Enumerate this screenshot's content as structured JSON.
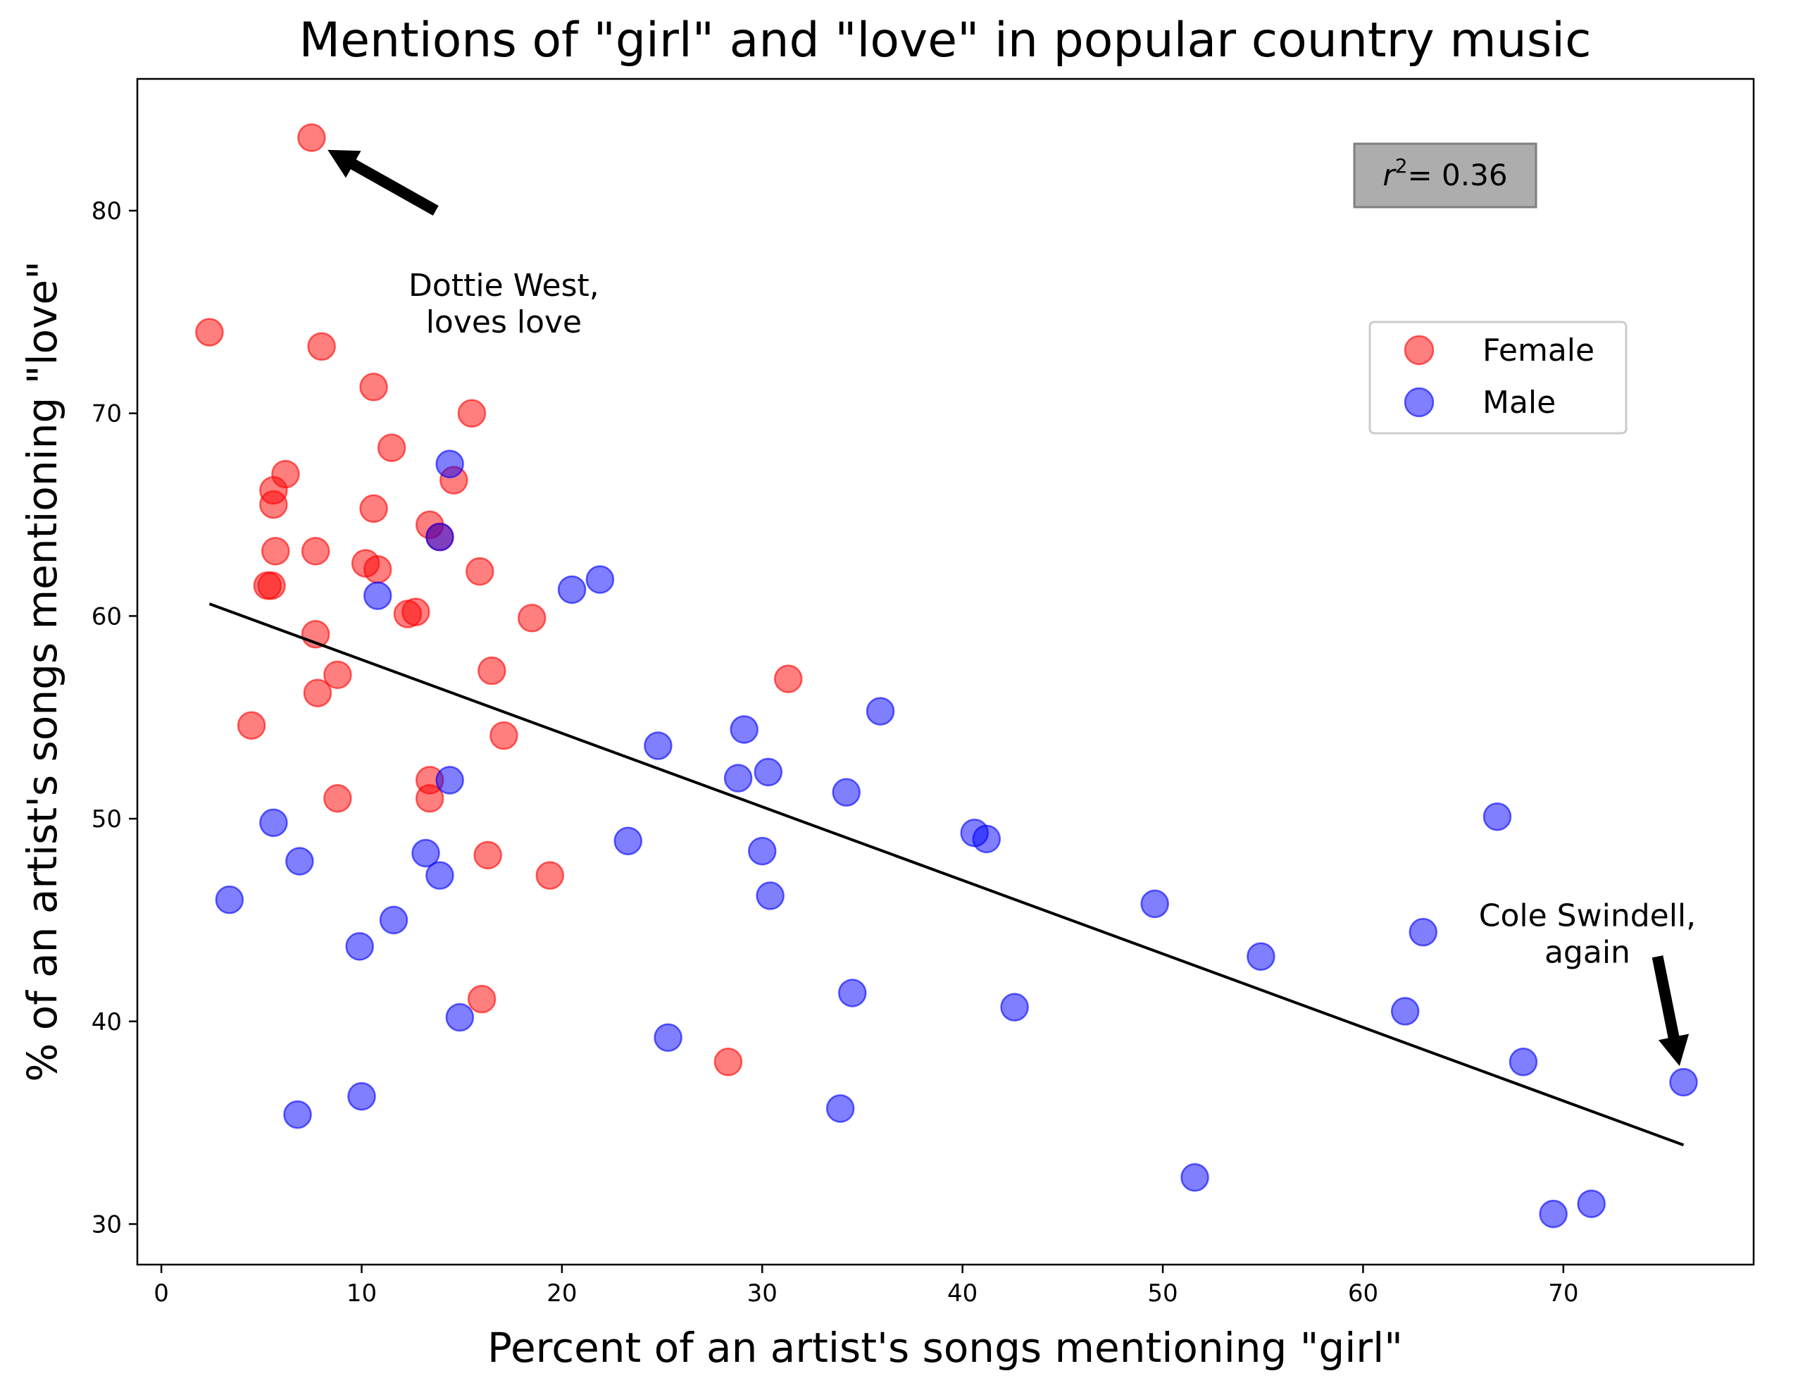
{
  "chart_data": {
    "type": "scatter",
    "title": "Mentions of \"girl\" and \"love\" in popular country music",
    "xlabel": "Percent of an artist's songs mentioning \"girl\"",
    "ylabel": "% of an artist's songs mentioning \"love\"",
    "xlim": [
      -1.2,
      79.5
    ],
    "ylim": [
      28,
      86.5
    ],
    "xticks": [
      0,
      10,
      20,
      30,
      40,
      50,
      60,
      70
    ],
    "yticks": [
      30,
      40,
      50,
      60,
      70,
      80
    ],
    "grid": false,
    "legend_position": "upper right",
    "series": [
      {
        "name": "Female",
        "color": "#ff0000",
        "points": [
          [
            7.5,
            83.6
          ],
          [
            2.4,
            74.0
          ],
          [
            8.0,
            73.3
          ],
          [
            10.6,
            71.3
          ],
          [
            15.5,
            70.0
          ],
          [
            11.5,
            68.3
          ],
          [
            14.6,
            66.7
          ],
          [
            6.2,
            67.0
          ],
          [
            5.6,
            66.2
          ],
          [
            5.6,
            65.5
          ],
          [
            10.6,
            65.3
          ],
          [
            13.4,
            64.5
          ],
          [
            13.9,
            63.9
          ],
          [
            5.7,
            63.2
          ],
          [
            7.7,
            63.2
          ],
          [
            10.2,
            62.6
          ],
          [
            10.8,
            62.3
          ],
          [
            15.9,
            62.2
          ],
          [
            5.3,
            61.5
          ],
          [
            5.5,
            61.5
          ],
          [
            12.7,
            60.2
          ],
          [
            12.3,
            60.1
          ],
          [
            18.5,
            59.9
          ],
          [
            7.7,
            59.1
          ],
          [
            8.8,
            57.1
          ],
          [
            16.5,
            57.3
          ],
          [
            31.3,
            56.9
          ],
          [
            7.8,
            56.2
          ],
          [
            4.5,
            54.6
          ],
          [
            17.1,
            54.1
          ],
          [
            13.4,
            51.9
          ],
          [
            13.4,
            51.0
          ],
          [
            8.8,
            51.0
          ],
          [
            16.3,
            48.2
          ],
          [
            19.4,
            47.2
          ],
          [
            16.0,
            41.1
          ],
          [
            28.3,
            38.0
          ]
        ]
      },
      {
        "name": "Male",
        "color": "#0000ff",
        "points": [
          [
            14.4,
            67.5
          ],
          [
            13.9,
            63.9
          ],
          [
            21.9,
            61.8
          ],
          [
            20.5,
            61.3
          ],
          [
            10.8,
            61.0
          ],
          [
            35.9,
            55.3
          ],
          [
            29.1,
            54.4
          ],
          [
            24.8,
            53.6
          ],
          [
            30.3,
            52.3
          ],
          [
            28.8,
            52.0
          ],
          [
            14.4,
            51.9
          ],
          [
            34.2,
            51.3
          ],
          [
            5.6,
            49.8
          ],
          [
            66.7,
            50.1
          ],
          [
            40.6,
            49.3
          ],
          [
            41.2,
            49.0
          ],
          [
            23.3,
            48.9
          ],
          [
            30.0,
            48.4
          ],
          [
            13.2,
            48.3
          ],
          [
            6.9,
            47.9
          ],
          [
            13.9,
            47.2
          ],
          [
            30.4,
            46.2
          ],
          [
            3.4,
            46.0
          ],
          [
            49.6,
            45.8
          ],
          [
            11.6,
            45.0
          ],
          [
            63.0,
            44.4
          ],
          [
            9.9,
            43.7
          ],
          [
            54.9,
            43.2
          ],
          [
            34.5,
            41.4
          ],
          [
            42.6,
            40.7
          ],
          [
            62.1,
            40.5
          ],
          [
            14.9,
            40.2
          ],
          [
            25.3,
            39.2
          ],
          [
            68.0,
            38.0
          ],
          [
            76.0,
            37.0
          ],
          [
            10.0,
            36.3
          ],
          [
            33.9,
            35.7
          ],
          [
            6.8,
            35.4
          ],
          [
            51.6,
            32.3
          ],
          [
            71.4,
            31.0
          ],
          [
            69.5,
            30.5
          ]
        ]
      }
    ],
    "trendline": {
      "x": [
        2.4,
        76.0
      ],
      "y": [
        60.6,
        33.9
      ],
      "color": "#000000"
    },
    "r2_label": "= 0.36",
    "annotations": [
      {
        "text": [
          "Dottie West,",
          "loves love"
        ],
        "text_at": [
          17.1,
          75.8
        ],
        "arrow_from": [
          13.7,
          80.0
        ],
        "arrow_to": [
          8.3,
          83.0
        ]
      },
      {
        "text": [
          "Cole Swindell,",
          "again"
        ],
        "text_at": [
          71.2,
          44.7
        ],
        "arrow_from": [
          74.7,
          43.2
        ],
        "arrow_to": [
          75.8,
          37.8
        ]
      }
    ]
  }
}
